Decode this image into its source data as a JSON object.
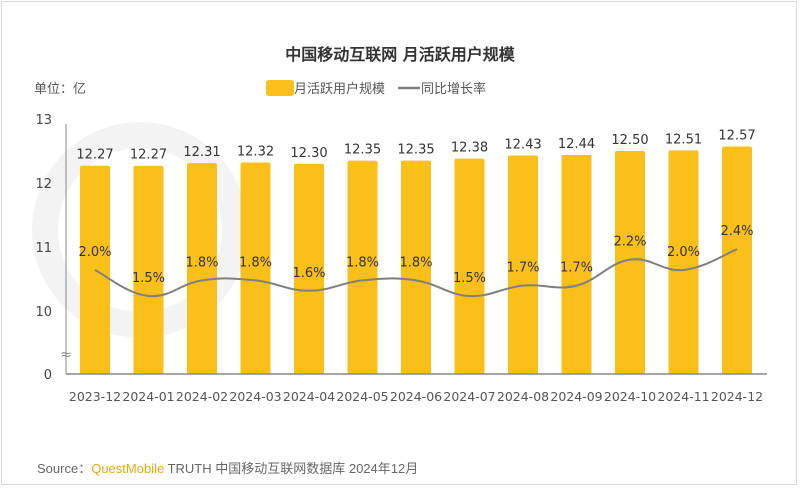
{
  "chart_data": {
    "type": "bar",
    "title": "中国移动互联网 月活跃用户规模",
    "unit_label": "单位：亿",
    "categories": [
      "2023-12",
      "2024-01",
      "2024-02",
      "2024-03",
      "2024-04",
      "2024-05",
      "2024-06",
      "2024-07",
      "2024-08",
      "2024-09",
      "2024-10",
      "2024-11",
      "2024-12"
    ],
    "series": [
      {
        "name": "月活跃用户规模",
        "kind": "bar",
        "color": "#fbbf1a",
        "values": [
          12.27,
          12.27,
          12.31,
          12.32,
          12.3,
          12.35,
          12.35,
          12.38,
          12.43,
          12.44,
          12.5,
          12.51,
          12.57
        ],
        "labels": [
          "12.27",
          "12.27",
          "12.31",
          "12.32",
          "12.30",
          "12.35",
          "12.35",
          "12.38",
          "12.43",
          "12.44",
          "12.50",
          "12.51",
          "12.57"
        ]
      },
      {
        "name": "同比增长率",
        "kind": "line",
        "color": "#7f7f7f",
        "values": [
          2.0,
          1.5,
          1.8,
          1.8,
          1.6,
          1.8,
          1.8,
          1.5,
          1.7,
          1.7,
          2.2,
          2.0,
          2.4
        ],
        "labels": [
          "2.0%",
          "1.5%",
          "1.8%",
          "1.8%",
          "1.6%",
          "1.8%",
          "1.8%",
          "1.5%",
          "1.7%",
          "1.7%",
          "2.2%",
          "2.0%",
          "2.4%"
        ]
      }
    ],
    "y_ticks": [
      "13",
      "12",
      "11",
      "10",
      "0"
    ],
    "ylim": [
      10,
      13
    ],
    "axis_break": true,
    "legend_placement": "top-center",
    "grid": false
  },
  "footer": {
    "source_prefix": "Source：",
    "brand": "QuestMobile",
    "source_text": " TRUTH 中国移动互联网数据库 2024年12月"
  }
}
